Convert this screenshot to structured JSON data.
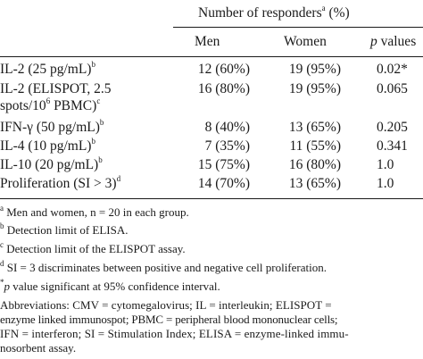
{
  "table": {
    "spanner_header": "Number of responders",
    "spanner_sup": "a",
    "spanner_tail": " (%)",
    "col_men": "Men",
    "col_women": "Women",
    "col_p_italic": "p",
    "col_p_tail": " values",
    "rows": [
      {
        "label": "IL-2 (25 pg/mL)",
        "label_sup": "b",
        "men": "12 (60%)",
        "women": "19 (95%)",
        "p": "0.02*"
      },
      {
        "label": "IL-2 (ELISPOT, 2.5",
        "label2a": "spots/10",
        "label2sup": "6",
        "label2b": " PBMC)",
        "label2end": "c",
        "men": "16 (80%)",
        "women": "19 (95%)",
        "p": "0.065"
      },
      {
        "label": "IFN-γ (50 pg/mL)",
        "label_sup": "b",
        "men": "8 (40%)",
        "women": "13 (65%)",
        "p": "0.205"
      },
      {
        "label": "IL-4 (10 pg/mL)",
        "label_sup": "b",
        "men": "7 (35%)",
        "women": "11 (55%)",
        "p": "0.341"
      },
      {
        "label": "IL-10 (20 pg/mL)",
        "label_sup": "b",
        "men": "15 (75%)",
        "women": "16 (80%)",
        "p": "1.0"
      },
      {
        "label": "Proliferation (SI > 3)",
        "label_sup": "d",
        "men": "14 (70%)",
        "women": "13 (65%)",
        "p": "1.0"
      }
    ]
  },
  "footnotes": [
    {
      "mark": "a",
      "text": " Men and women, n = 20 in each group."
    },
    {
      "mark": "b",
      "text": " Detection limit of ELISA."
    },
    {
      "mark": "c",
      "text": " Detection limit of the ELISPOT assay."
    },
    {
      "mark": "d",
      "text": " SI = 3 discriminates between positive and negative cell proliferation."
    },
    {
      "mark": "*",
      "mark_p": "p",
      "text": " value significant at 95% confidence interval."
    }
  ],
  "abbreviations": [
    "Abbreviations: CMV = cytomegalovirus; IL = interleukin; ELISPOT =",
    "enzyme linked immunospot; PBMC = peripheral blood mononuclear cells;",
    "IFN = interferon; SI = Stimulation Index; ELISA = enzyme-linked immu-",
    "nosorbent assay."
  ]
}
